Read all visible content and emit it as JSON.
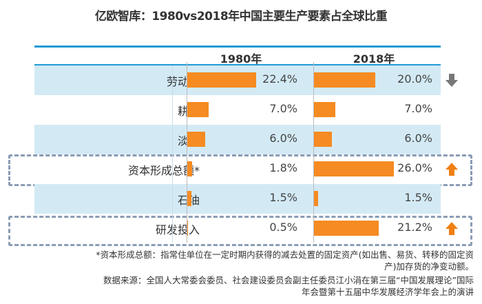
{
  "title": "亿欧智库：1980vs2018年中国主要生产要素占全球比重",
  "chart_data": {
    "type": "bar",
    "title": "亿欧智库：1980vs2018年中国主要生产要素占全球比重",
    "columns": [
      "1980年",
      "2018年"
    ],
    "categories": [
      "劳动力",
      "耕地",
      "淡水",
      "资本形成总额*",
      "石油",
      "研发投入"
    ],
    "series": [
      {
        "name": "1980年",
        "values": [
          22.4,
          7.0,
          6.0,
          1.8,
          1.5,
          0.5
        ],
        "labels": [
          "22.4%",
          "7.0%",
          "6.0%",
          "1.8%",
          "1.5%",
          "0.5%"
        ]
      },
      {
        "name": "2018年",
        "values": [
          20.0,
          7.0,
          6.0,
          26.0,
          1.5,
          21.2
        ],
        "labels": [
          "20.0%",
          "7.0%",
          "6.0%",
          "26.0%",
          "1.5%",
          "21.2%"
        ]
      }
    ],
    "trend": [
      "down",
      "",
      "",
      "up",
      "",
      "up"
    ],
    "highlighted": [
      "资本形成总额*",
      "研发投入"
    ],
    "colors": {
      "bar": "#f58b22",
      "row": "#d3eaf5",
      "up": "#f07f14",
      "down": "#777777"
    }
  },
  "notes": {
    "line1": "*资本形成总额：指常住单位在一定时期内获得的减去处置的固定资产(如出售、易货、转移的固定资",
    "line2": "产)加存货的净变动额。",
    "line3": "数据来源：全国人大常委会委员、社会建设委员会副主任委员江小涓在第三届“中国发展理论”国际",
    "line4": "年会暨第十五届中华发展经济学年会上的演讲"
  }
}
